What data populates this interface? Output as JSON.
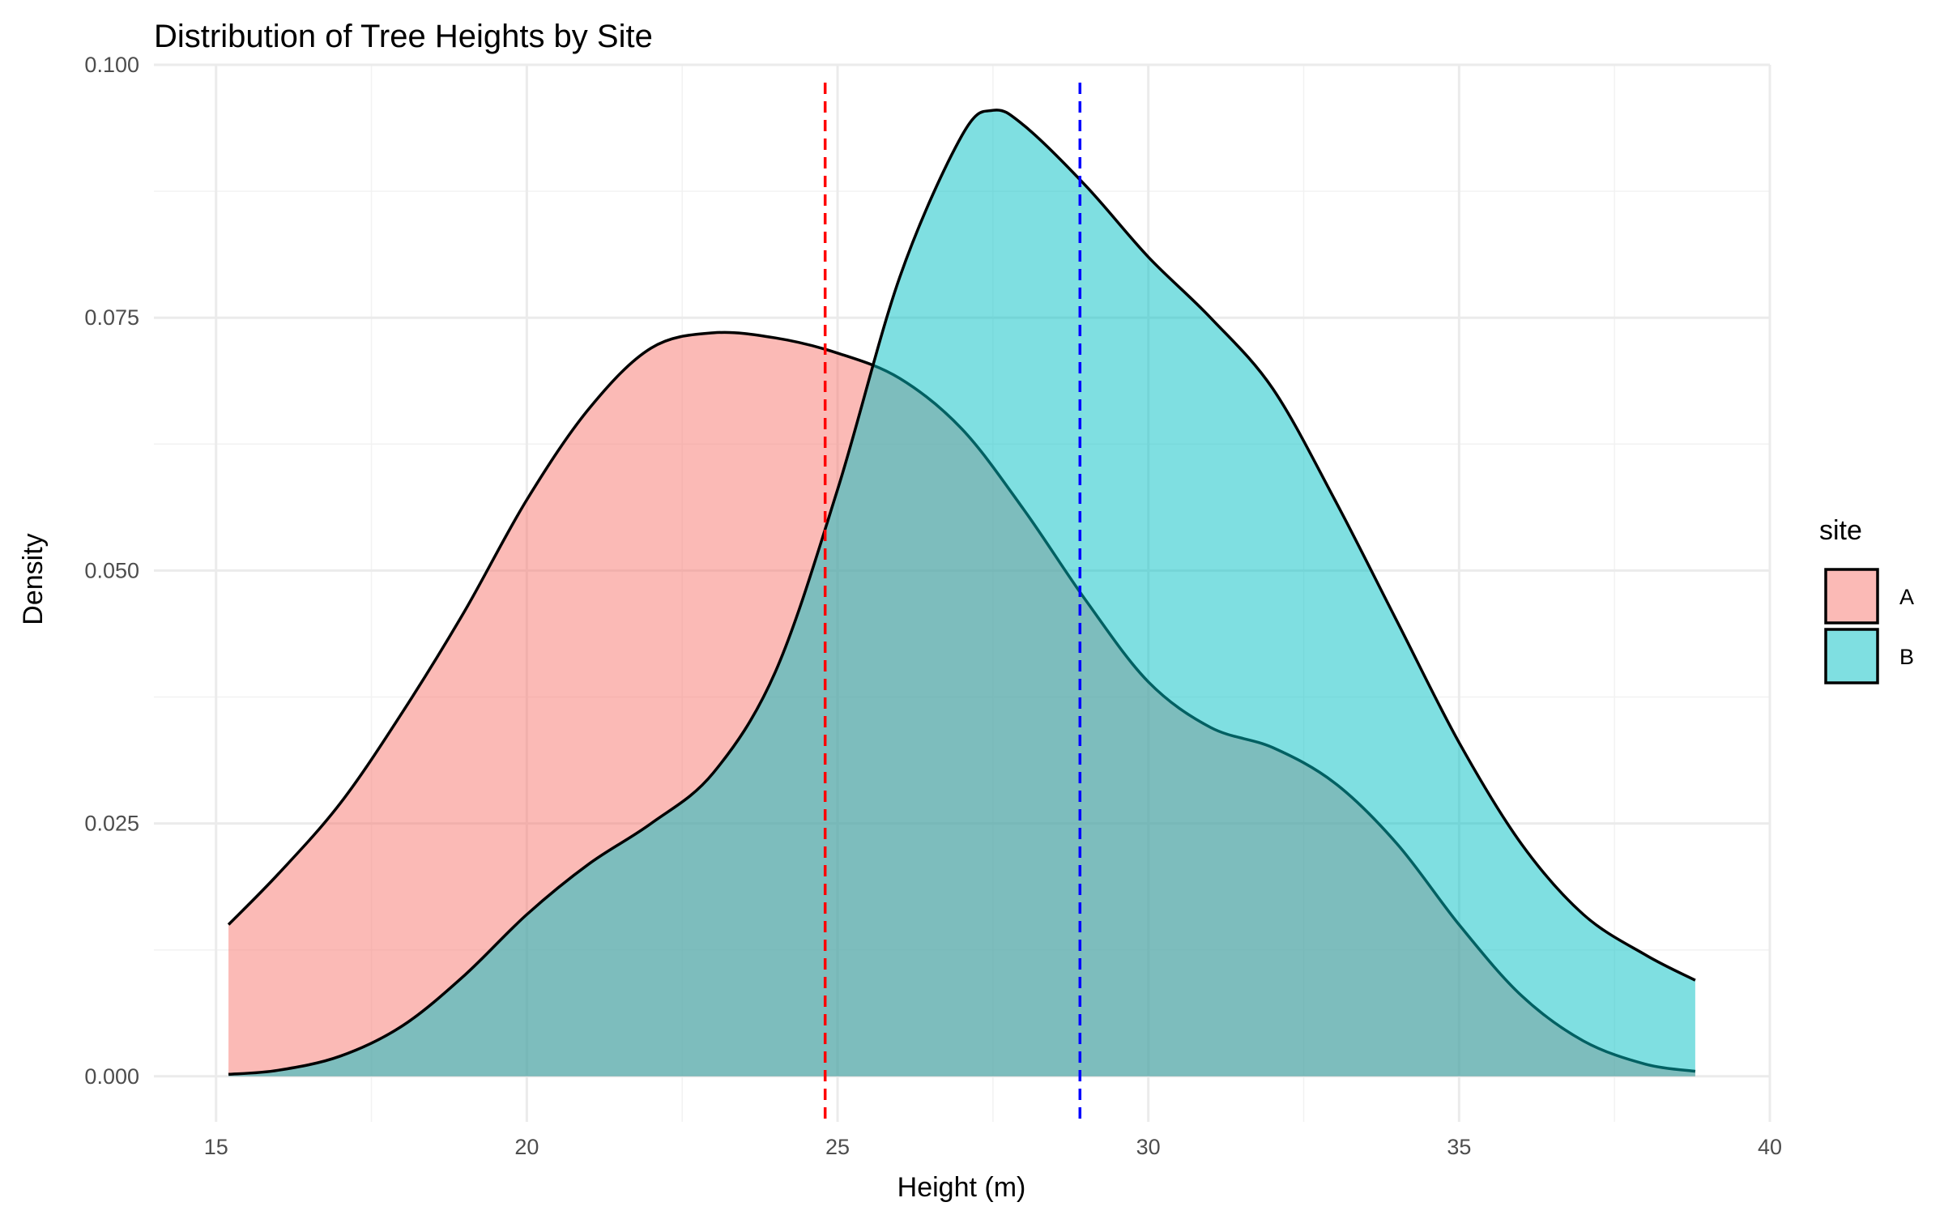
{
  "chart_data": {
    "type": "area",
    "title": "Distribution of Tree Heights by Site",
    "xlabel": "Height (m)",
    "ylabel": "Density",
    "xlim": [
      14,
      40
    ],
    "ylim": [
      -0.0045,
      0.1
    ],
    "x_ticks": [
      15,
      20,
      25,
      30,
      35,
      40
    ],
    "y_ticks": [
      0.0,
      0.025,
      0.05,
      0.075,
      0.1
    ],
    "x_tick_labels": [
      "15",
      "20",
      "25",
      "30",
      "35",
      "40"
    ],
    "y_tick_labels": [
      "0.000",
      "0.025",
      "0.050",
      "0.075",
      "0.100"
    ],
    "grid": true,
    "legend": {
      "title": "site",
      "position": "right",
      "entries": [
        {
          "label": "A",
          "color": "#F8766D"
        },
        {
          "label": "B",
          "color": "#00BFC4"
        }
      ]
    },
    "series": [
      {
        "name": "A",
        "color": "#F8766D",
        "fill_opacity": 0.5,
        "x": [
          15.2,
          16.0,
          17.0,
          18.0,
          19.0,
          20.0,
          21.0,
          22.0,
          23.0,
          24.0,
          25.0,
          26.0,
          27.0,
          28.0,
          29.0,
          30.0,
          31.0,
          32.0,
          33.0,
          34.0,
          35.0,
          36.0,
          37.0,
          38.0,
          38.8
        ],
        "y": [
          0.015,
          0.02,
          0.027,
          0.036,
          0.046,
          0.057,
          0.066,
          0.072,
          0.0735,
          0.073,
          0.0715,
          0.069,
          0.064,
          0.056,
          0.047,
          0.039,
          0.0345,
          0.0325,
          0.029,
          0.023,
          0.015,
          0.008,
          0.0035,
          0.0012,
          0.0005
        ]
      },
      {
        "name": "B",
        "color": "#00BFC4",
        "fill_opacity": 0.5,
        "x": [
          15.2,
          16.0,
          17.0,
          18.0,
          19.0,
          20.0,
          21.0,
          22.0,
          23.0,
          24.0,
          25.0,
          26.0,
          27.0,
          27.5,
          28.0,
          29.0,
          30.0,
          31.0,
          32.0,
          33.0,
          34.0,
          35.0,
          36.0,
          37.0,
          38.0,
          38.8
        ],
        "y": [
          0.0002,
          0.0006,
          0.002,
          0.005,
          0.01,
          0.016,
          0.021,
          0.025,
          0.03,
          0.04,
          0.058,
          0.079,
          0.093,
          0.0955,
          0.094,
          0.088,
          0.081,
          0.075,
          0.068,
          0.057,
          0.045,
          0.033,
          0.023,
          0.016,
          0.012,
          0.0095
        ]
      }
    ],
    "vlines": [
      {
        "series": "A",
        "x": 24.8,
        "color": "#FF0000",
        "style": "dashed"
      },
      {
        "series": "B",
        "x": 28.9,
        "color": "#0000FF",
        "style": "dashed"
      }
    ]
  }
}
